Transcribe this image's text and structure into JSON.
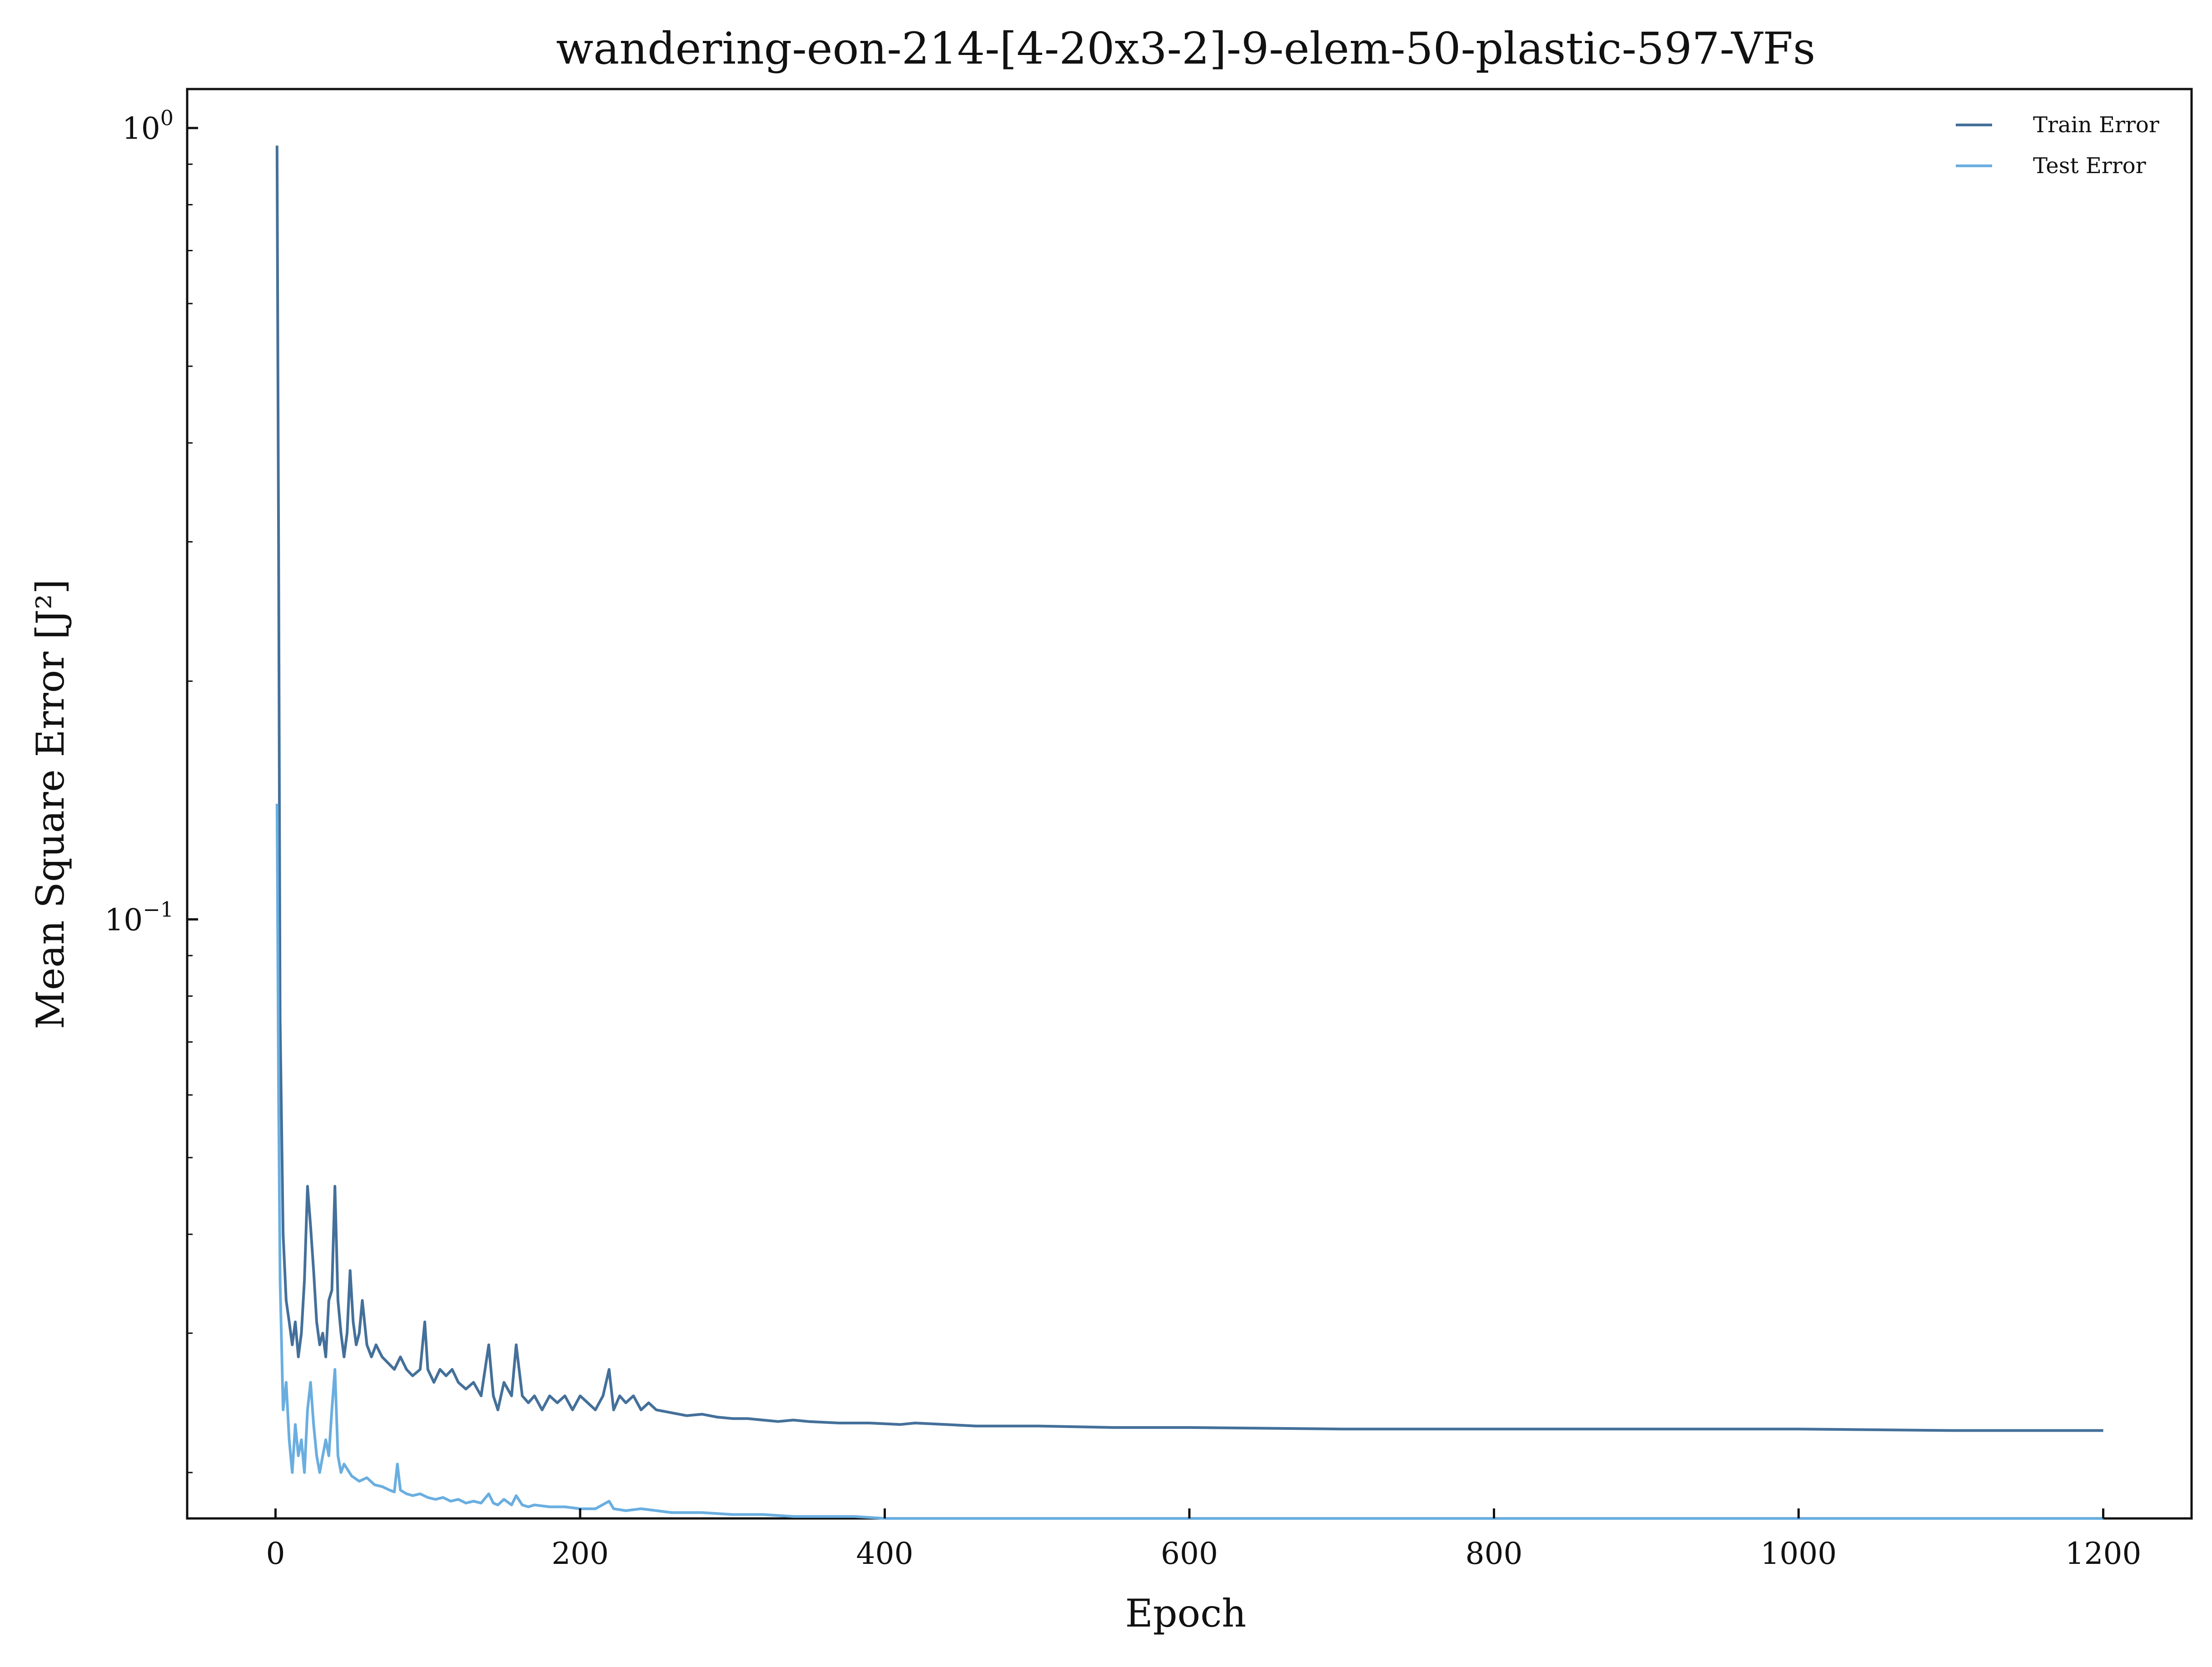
{
  "chart_data": {
    "type": "line",
    "title": "wandering-eon-214-[4-20x3-2]-9-elem-50-plastic-597-VFs",
    "xlabel": "Epoch",
    "ylabel": "Mean Square Error [J²]",
    "y_scale": "log",
    "xlim": [
      -58,
      1258
    ],
    "ylim": [
      0.0175,
      1.12
    ],
    "x_ticks": [
      {
        "value": 0,
        "label": "0"
      },
      {
        "value": 200,
        "label": "200"
      },
      {
        "value": 400,
        "label": "400"
      },
      {
        "value": 600,
        "label": "600"
      },
      {
        "value": 800,
        "label": "800"
      },
      {
        "value": 1000,
        "label": "1000"
      },
      {
        "value": 1200,
        "label": "1200"
      }
    ],
    "y_ticks": [
      {
        "value": 1,
        "base": "10",
        "exp": "0"
      },
      {
        "value": 0.1,
        "base": "10",
        "exp": "−1"
      }
    ],
    "legend_position": "top-right",
    "grid": false,
    "series": [
      {
        "name": "Train Error",
        "color": "#44709a",
        "points": [
          [
            1,
            0.95
          ],
          [
            2,
            0.3
          ],
          [
            3,
            0.075
          ],
          [
            5,
            0.04
          ],
          [
            7,
            0.033
          ],
          [
            9,
            0.031
          ],
          [
            11,
            0.029
          ],
          [
            13,
            0.031
          ],
          [
            15,
            0.028
          ],
          [
            17,
            0.03
          ],
          [
            19,
            0.035
          ],
          [
            21,
            0.046
          ],
          [
            23,
            0.041
          ],
          [
            25,
            0.036
          ],
          [
            27,
            0.031
          ],
          [
            29,
            0.029
          ],
          [
            31,
            0.03
          ],
          [
            33,
            0.028
          ],
          [
            35,
            0.033
          ],
          [
            37,
            0.034
          ],
          [
            39,
            0.046
          ],
          [
            41,
            0.033
          ],
          [
            43,
            0.03
          ],
          [
            45,
            0.028
          ],
          [
            47,
            0.03
          ],
          [
            49,
            0.036
          ],
          [
            51,
            0.031
          ],
          [
            53,
            0.029
          ],
          [
            55,
            0.03
          ],
          [
            57,
            0.033
          ],
          [
            60,
            0.029
          ],
          [
            63,
            0.028
          ],
          [
            66,
            0.029
          ],
          [
            70,
            0.028
          ],
          [
            74,
            0.0275
          ],
          [
            78,
            0.027
          ],
          [
            82,
            0.028
          ],
          [
            86,
            0.027
          ],
          [
            90,
            0.0265
          ],
          [
            95,
            0.027
          ],
          [
            98,
            0.031
          ],
          [
            100,
            0.027
          ],
          [
            104,
            0.026
          ],
          [
            108,
            0.027
          ],
          [
            112,
            0.0265
          ],
          [
            116,
            0.027
          ],
          [
            120,
            0.026
          ],
          [
            125,
            0.0255
          ],
          [
            130,
            0.026
          ],
          [
            135,
            0.025
          ],
          [
            140,
            0.029
          ],
          [
            143,
            0.025
          ],
          [
            146,
            0.024
          ],
          [
            150,
            0.026
          ],
          [
            155,
            0.025
          ],
          [
            158,
            0.029
          ],
          [
            162,
            0.025
          ],
          [
            166,
            0.0245
          ],
          [
            170,
            0.025
          ],
          [
            175,
            0.024
          ],
          [
            180,
            0.025
          ],
          [
            185,
            0.0245
          ],
          [
            190,
            0.025
          ],
          [
            195,
            0.024
          ],
          [
            200,
            0.025
          ],
          [
            205,
            0.0245
          ],
          [
            210,
            0.024
          ],
          [
            215,
            0.025
          ],
          [
            219,
            0.027
          ],
          [
            222,
            0.024
          ],
          [
            226,
            0.025
          ],
          [
            230,
            0.0245
          ],
          [
            235,
            0.025
          ],
          [
            240,
            0.024
          ],
          [
            245,
            0.0245
          ],
          [
            250,
            0.024
          ],
          [
            260,
            0.0238
          ],
          [
            270,
            0.0236
          ],
          [
            280,
            0.0237
          ],
          [
            290,
            0.0235
          ],
          [
            300,
            0.0234
          ],
          [
            310,
            0.0234
          ],
          [
            320,
            0.0233
          ],
          [
            330,
            0.0232
          ],
          [
            340,
            0.0233
          ],
          [
            350,
            0.0232
          ],
          [
            370,
            0.0231
          ],
          [
            390,
            0.0231
          ],
          [
            410,
            0.023
          ],
          [
            420,
            0.0231
          ],
          [
            440,
            0.023
          ],
          [
            460,
            0.0229
          ],
          [
            480,
            0.0229
          ],
          [
            500,
            0.0229
          ],
          [
            550,
            0.0228
          ],
          [
            600,
            0.0228
          ],
          [
            700,
            0.0227
          ],
          [
            800,
            0.0227
          ],
          [
            900,
            0.0227
          ],
          [
            1000,
            0.0227
          ],
          [
            1100,
            0.0226
          ],
          [
            1200,
            0.0226
          ]
        ]
      },
      {
        "name": "Test Error",
        "color": "#6aaee0",
        "points": [
          [
            1,
            0.14
          ],
          [
            2,
            0.06
          ],
          [
            3,
            0.035
          ],
          [
            5,
            0.024
          ],
          [
            7,
            0.026
          ],
          [
            9,
            0.022
          ],
          [
            11,
            0.02
          ],
          [
            13,
            0.023
          ],
          [
            15,
            0.021
          ],
          [
            17,
            0.022
          ],
          [
            19,
            0.02
          ],
          [
            21,
            0.024
          ],
          [
            23,
            0.026
          ],
          [
            25,
            0.023
          ],
          [
            27,
            0.021
          ],
          [
            29,
            0.02
          ],
          [
            31,
            0.021
          ],
          [
            33,
            0.022
          ],
          [
            35,
            0.021
          ],
          [
            37,
            0.024
          ],
          [
            39,
            0.027
          ],
          [
            41,
            0.021
          ],
          [
            43,
            0.02
          ],
          [
            45,
            0.0205
          ],
          [
            50,
            0.0198
          ],
          [
            55,
            0.0195
          ],
          [
            60,
            0.0197
          ],
          [
            65,
            0.0193
          ],
          [
            70,
            0.0192
          ],
          [
            75,
            0.019
          ],
          [
            78,
            0.0189
          ],
          [
            80,
            0.0205
          ],
          [
            82,
            0.019
          ],
          [
            86,
            0.0188
          ],
          [
            90,
            0.0187
          ],
          [
            95,
            0.0188
          ],
          [
            100,
            0.0186
          ],
          [
            105,
            0.0185
          ],
          [
            110,
            0.0186
          ],
          [
            115,
            0.0184
          ],
          [
            120,
            0.0185
          ],
          [
            125,
            0.0183
          ],
          [
            130,
            0.0184
          ],
          [
            135,
            0.0183
          ],
          [
            140,
            0.0188
          ],
          [
            143,
            0.0183
          ],
          [
            146,
            0.0182
          ],
          [
            150,
            0.0185
          ],
          [
            155,
            0.0182
          ],
          [
            158,
            0.0187
          ],
          [
            162,
            0.0182
          ],
          [
            166,
            0.0181
          ],
          [
            170,
            0.0182
          ],
          [
            180,
            0.0181
          ],
          [
            190,
            0.0181
          ],
          [
            200,
            0.018
          ],
          [
            210,
            0.018
          ],
          [
            219,
            0.0184
          ],
          [
            222,
            0.018
          ],
          [
            230,
            0.0179
          ],
          [
            240,
            0.018
          ],
          [
            250,
            0.0179
          ],
          [
            260,
            0.0178
          ],
          [
            280,
            0.0178
          ],
          [
            300,
            0.0177
          ],
          [
            320,
            0.0177
          ],
          [
            340,
            0.0176
          ],
          [
            360,
            0.0176
          ],
          [
            380,
            0.0176
          ],
          [
            400,
            0.0175
          ],
          [
            420,
            0.0175
          ],
          [
            440,
            0.0175
          ],
          [
            460,
            0.0175
          ],
          [
            500,
            0.0175
          ],
          [
            600,
            0.0175
          ],
          [
            700,
            0.0175
          ],
          [
            800,
            0.0175
          ],
          [
            900,
            0.0175
          ],
          [
            1000,
            0.0175
          ],
          [
            1100,
            0.0175
          ],
          [
            1200,
            0.0175
          ]
        ]
      }
    ]
  }
}
